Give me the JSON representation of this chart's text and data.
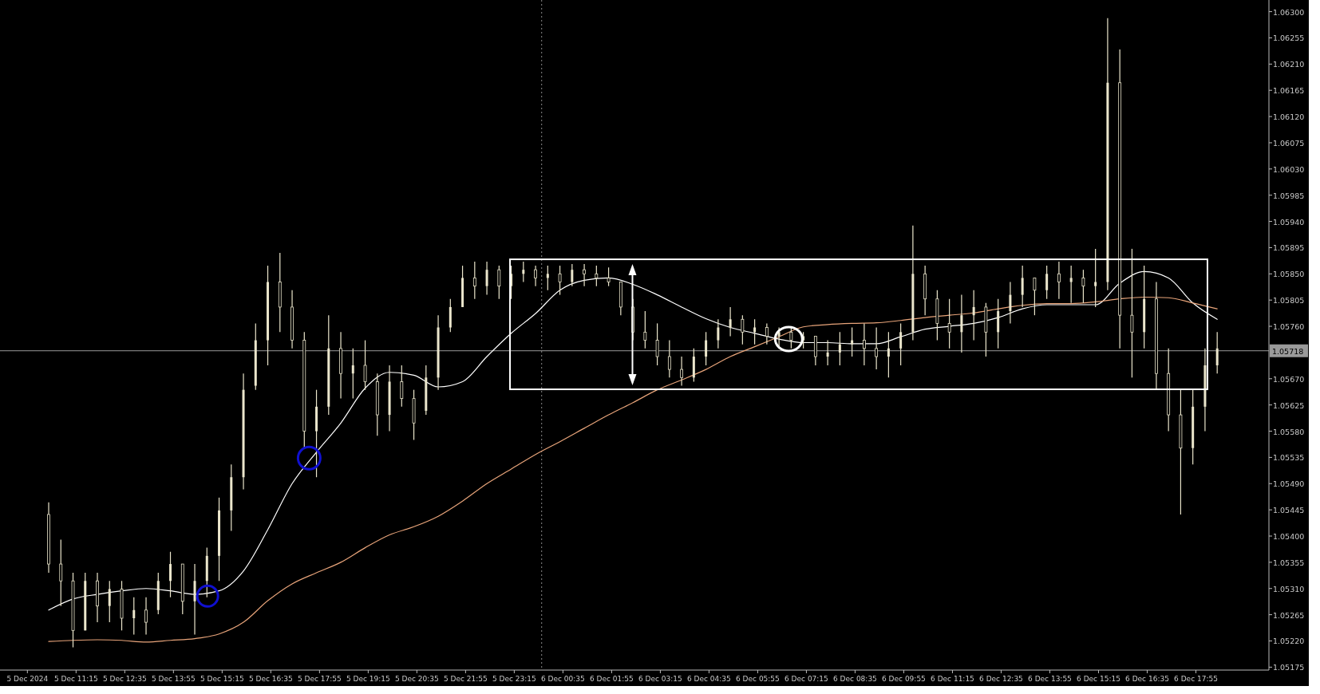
{
  "chart_data": {
    "type": "candlestick",
    "color": "#ebe6cc",
    "x": [
      "2024-12-05T10:30",
      "2024-12-05T10:50",
      "2024-12-05T11:10",
      "2024-12-05T11:30",
      "2024-12-05T11:50",
      "2024-12-05T12:10",
      "2024-12-05T12:30",
      "2024-12-05T12:50",
      "2024-12-05T13:10",
      "2024-12-05T13:30",
      "2024-12-05T13:50",
      "2024-12-05T14:10",
      "2024-12-05T14:30",
      "2024-12-05T14:50",
      "2024-12-05T15:10",
      "2024-12-05T15:30",
      "2024-12-05T15:50",
      "2024-12-05T16:10",
      "2024-12-05T16:30",
      "2024-12-05T16:50",
      "2024-12-05T17:10",
      "2024-12-05T17:30",
      "2024-12-05T17:50",
      "2024-12-05T18:10",
      "2024-12-05T18:30",
      "2024-12-05T18:50",
      "2024-12-05T19:10",
      "2024-12-05T19:30",
      "2024-12-05T19:50",
      "2024-12-05T20:10",
      "2024-12-05T20:30",
      "2024-12-05T20:50",
      "2024-12-05T21:10",
      "2024-12-05T21:30",
      "2024-12-05T21:50",
      "2024-12-05T22:10",
      "2024-12-05T22:30",
      "2024-12-05T22:50",
      "2024-12-05T23:10",
      "2024-12-05T23:30",
      "2024-12-05T23:50",
      "2024-12-06T00:10",
      "2024-12-06T00:30",
      "2024-12-06T00:50",
      "2024-12-06T01:10",
      "2024-12-06T01:30",
      "2024-12-06T01:50",
      "2024-12-06T02:10",
      "2024-12-06T02:30",
      "2024-12-06T02:50",
      "2024-12-06T03:10",
      "2024-12-06T03:30",
      "2024-12-06T03:50",
      "2024-12-06T04:10",
      "2024-12-06T04:30",
      "2024-12-06T04:50",
      "2024-12-06T05:10",
      "2024-12-06T05:30",
      "2024-12-06T05:50",
      "2024-12-06T06:10",
      "2024-12-06T06:30",
      "2024-12-06T06:50",
      "2024-12-06T07:10",
      "2024-12-06T07:30",
      "2024-12-06T07:50",
      "2024-12-06T08:10",
      "2024-12-06T08:30",
      "2024-12-06T08:50",
      "2024-12-06T09:10",
      "2024-12-06T09:30",
      "2024-12-06T09:50",
      "2024-12-06T10:10",
      "2024-12-06T10:30",
      "2024-12-06T10:50",
      "2024-12-06T11:10",
      "2024-12-06T11:30",
      "2024-12-06T11:50",
      "2024-12-06T12:10",
      "2024-12-06T12:30",
      "2024-12-06T12:50",
      "2024-12-06T13:10",
      "2024-12-06T13:30",
      "2024-12-06T13:50",
      "2024-12-06T14:10",
      "2024-12-06T14:30",
      "2024-12-06T14:50",
      "2024-12-06T15:10",
      "2024-12-06T15:30",
      "2024-12-06T15:50",
      "2024-12-06T16:10",
      "2024-12-06T16:30",
      "2024-12-06T16:50",
      "2024-12-06T17:10",
      "2024-12-06T17:30",
      "2024-12-06T17:50",
      "2024-12-06T18:10",
      "2024-12-06T18:30"
    ],
    "ohlc": [
      [
        1.05437,
        1.05458,
        1.05337,
        1.05352
      ],
      [
        1.05352,
        1.05394,
        1.0528,
        1.05323
      ],
      [
        1.05323,
        1.05337,
        1.05209,
        1.05238
      ],
      [
        1.05238,
        1.05337,
        1.05238,
        1.05323
      ],
      [
        1.05323,
        1.05337,
        1.05252,
        1.0528
      ],
      [
        1.0528,
        1.05323,
        1.05252,
        1.05309
      ],
      [
        1.05309,
        1.05323,
        1.05238,
        1.05259
      ],
      [
        1.05259,
        1.05295,
        1.05231,
        1.05273
      ],
      [
        1.05273,
        1.05295,
        1.05231,
        1.05252
      ],
      [
        1.05273,
        1.05337,
        1.05266,
        1.05323
      ],
      [
        1.05323,
        1.05373,
        1.05295,
        1.05352
      ],
      [
        1.05352,
        1.05352,
        1.05266,
        1.05288
      ],
      [
        1.05288,
        1.05352,
        1.05231,
        1.05323
      ],
      [
        1.05323,
        1.0538,
        1.05295,
        1.05366
      ],
      [
        1.05366,
        1.05466,
        1.05323,
        1.05444
      ],
      [
        1.05444,
        1.05523,
        1.05409,
        1.05501
      ],
      [
        1.05501,
        1.05679,
        1.0548,
        1.05651
      ],
      [
        1.05658,
        1.05765,
        1.05651,
        1.05736
      ],
      [
        1.05736,
        1.05864,
        1.05693,
        1.05836
      ],
      [
        1.05836,
        1.05886,
        1.0575,
        1.05793
      ],
      [
        1.05793,
        1.05822,
        1.05722,
        1.05736
      ],
      [
        1.05736,
        1.0575,
        1.05551,
        1.0558
      ],
      [
        1.0558,
        1.05651,
        1.05501,
        1.05622
      ],
      [
        1.05622,
        1.05779,
        1.05608,
        1.05722
      ],
      [
        1.05722,
        1.0575,
        1.05636,
        1.05679
      ],
      [
        1.05679,
        1.05722,
        1.05636,
        1.05693
      ],
      [
        1.05693,
        1.05736,
        1.05651,
        1.05665
      ],
      [
        1.05665,
        1.05679,
        1.05572,
        1.05608
      ],
      [
        1.05608,
        1.05693,
        1.0558,
        1.05665
      ],
      [
        1.05665,
        1.05693,
        1.05622,
        1.05636
      ],
      [
        1.05636,
        1.05651,
        1.05565,
        1.05594
      ],
      [
        1.05615,
        1.05693,
        1.05608,
        1.05672
      ],
      [
        1.05672,
        1.05779,
        1.05651,
        1.05758
      ],
      [
        1.05758,
        1.05807,
        1.0575,
        1.05793
      ],
      [
        1.05793,
        1.05864,
        1.05793,
        1.05843
      ],
      [
        1.05843,
        1.05871,
        1.05807,
        1.05829
      ],
      [
        1.05829,
        1.05871,
        1.05814,
        1.05857
      ],
      [
        1.05857,
        1.05864,
        1.05807,
        1.05829
      ],
      [
        1.05829,
        1.05864,
        1.05807,
        1.0585
      ],
      [
        1.0585,
        1.05871,
        1.05836,
        1.05857
      ],
      [
        1.05857,
        1.05864,
        1.05829,
        1.05843
      ],
      [
        1.05843,
        1.05864,
        1.05822,
        1.0585
      ],
      [
        1.0585,
        1.05864,
        1.05814,
        1.05836
      ],
      [
        1.05836,
        1.05867,
        1.05829,
        1.05857
      ],
      [
        1.05857,
        1.05867,
        1.05829,
        1.0585
      ],
      [
        1.0585,
        1.05864,
        1.05829,
        1.05843
      ],
      [
        1.05843,
        1.05861,
        1.05829,
        1.05836
      ],
      [
        1.05836,
        1.05836,
        1.05779,
        1.05793
      ],
      [
        1.05793,
        1.05807,
        1.05736,
        1.0575
      ],
      [
        1.0575,
        1.05786,
        1.05722,
        1.05736
      ],
      [
        1.05736,
        1.05765,
        1.05693,
        1.05708
      ],
      [
        1.05708,
        1.05736,
        1.05672,
        1.05686
      ],
      [
        1.05686,
        1.05708,
        1.05658,
        1.05672
      ],
      [
        1.05672,
        1.05722,
        1.05665,
        1.05708
      ],
      [
        1.05708,
        1.0575,
        1.05693,
        1.05736
      ],
      [
        1.05736,
        1.05772,
        1.05722,
        1.05758
      ],
      [
        1.05758,
        1.05793,
        1.05743,
        1.05772
      ],
      [
        1.05772,
        1.05779,
        1.05729,
        1.0575
      ],
      [
        1.0575,
        1.05772,
        1.05729,
        1.05758
      ],
      [
        1.05758,
        1.05765,
        1.05729,
        1.05743
      ],
      [
        1.05743,
        1.05758,
        1.05722,
        1.0575
      ],
      [
        1.0575,
        1.05758,
        1.05722,
        1.05736
      ],
      [
        1.05736,
        1.0575,
        1.05722,
        1.05743
      ],
      [
        1.05743,
        1.05743,
        1.05693,
        1.05708
      ],
      [
        1.05708,
        1.05736,
        1.05693,
        1.05715
      ],
      [
        1.05715,
        1.0575,
        1.05693,
        1.05729
      ],
      [
        1.05729,
        1.05758,
        1.05708,
        1.05736
      ],
      [
        1.05736,
        1.05765,
        1.05693,
        1.05722
      ],
      [
        1.05722,
        1.05758,
        1.05686,
        1.05708
      ],
      [
        1.05708,
        1.0575,
        1.05672,
        1.05722
      ],
      [
        1.05722,
        1.05765,
        1.05693,
        1.0575
      ],
      [
        1.0575,
        1.05933,
        1.05736,
        1.0585
      ],
      [
        1.0585,
        1.05864,
        1.05779,
        1.05807
      ],
      [
        1.05807,
        1.05822,
        1.05736,
        1.05765
      ],
      [
        1.05765,
        1.05807,
        1.05722,
        1.0575
      ],
      [
        1.0575,
        1.05814,
        1.05715,
        1.05779
      ],
      [
        1.05779,
        1.05822,
        1.05736,
        1.05793
      ],
      [
        1.05793,
        1.058,
        1.05708,
        1.0575
      ],
      [
        1.0575,
        1.05807,
        1.05722,
        1.05786
      ],
      [
        1.05786,
        1.05836,
        1.05765,
        1.05814
      ],
      [
        1.05814,
        1.05864,
        1.05793,
        1.05843
      ],
      [
        1.05843,
        1.05843,
        1.05779,
        1.05822
      ],
      [
        1.05822,
        1.05864,
        1.05807,
        1.0585
      ],
      [
        1.0585,
        1.05871,
        1.05807,
        1.05836
      ],
      [
        1.05836,
        1.05864,
        1.058,
        1.05843
      ],
      [
        1.05843,
        1.05857,
        1.058,
        1.05829
      ],
      [
        1.05829,
        1.05893,
        1.05793,
        1.05836
      ],
      [
        1.05836,
        1.06289,
        1.05822,
        1.06178
      ],
      [
        1.06178,
        1.06235,
        1.05722,
        1.05779
      ],
      [
        1.05779,
        1.05893,
        1.05672,
        1.0575
      ],
      [
        1.0575,
        1.05864,
        1.05722,
        1.05807
      ],
      [
        1.05807,
        1.05836,
        1.05651,
        1.05679
      ],
      [
        1.05679,
        1.05722,
        1.0558,
        1.05608
      ],
      [
        1.05608,
        1.05651,
        1.05437,
        1.05551
      ],
      [
        1.05551,
        1.05651,
        1.05523,
        1.05622
      ],
      [
        1.05622,
        1.05722,
        1.0558,
        1.05693
      ],
      [
        1.05693,
        1.0575,
        1.05679,
        1.05722
      ]
    ],
    "series": [
      {
        "type": "line",
        "color": "#ffffff",
        "x": [
          "2024-12-05T10:30",
          "2024-12-05T11:10",
          "2024-12-05T11:50",
          "2024-12-05T12:30",
          "2024-12-05T13:10",
          "2024-12-05T13:50",
          "2024-12-05T14:30",
          "2024-12-05T15:10",
          "2024-12-05T15:50",
          "2024-12-05T16:30",
          "2024-12-05T17:10",
          "2024-12-05T17:50",
          "2024-12-05T18:30",
          "2024-12-05T19:10",
          "2024-12-05T19:50",
          "2024-12-05T20:30",
          "2024-12-05T21:10",
          "2024-12-05T21:50",
          "2024-12-05T22:30",
          "2024-12-05T23:10",
          "2024-12-05T23:50",
          "2024-12-06T00:30",
          "2024-12-06T01:10",
          "2024-12-06T01:50",
          "2024-12-06T02:30",
          "2024-12-06T03:10",
          "2024-12-06T03:50",
          "2024-12-06T04:30",
          "2024-12-06T05:10",
          "2024-12-06T05:50",
          "2024-12-06T06:30",
          "2024-12-06T07:10",
          "2024-12-06T07:50",
          "2024-12-06T08:30",
          "2024-12-06T09:10",
          "2024-12-06T09:50",
          "2024-12-06T10:30",
          "2024-12-06T11:10",
          "2024-12-06T11:50",
          "2024-12-06T12:30",
          "2024-12-06T13:10",
          "2024-12-06T13:50",
          "2024-12-06T14:30",
          "2024-12-06T15:10",
          "2024-12-06T15:50",
          "2024-12-06T16:30",
          "2024-12-06T17:10",
          "2024-12-06T17:50",
          "2024-12-06T18:30"
        ],
        "values": [
          1.05273,
          1.05292,
          1.053,
          1.05306,
          1.0531,
          1.05306,
          1.053,
          1.05306,
          1.0534,
          1.05411,
          1.0549,
          1.05544,
          1.05594,
          1.05654,
          1.05681,
          1.05676,
          1.05656,
          1.05665,
          1.05708,
          1.05748,
          1.05782,
          1.05822,
          1.05839,
          1.05843,
          1.05832,
          1.05814,
          1.05793,
          1.05773,
          1.05758,
          1.05748,
          1.05738,
          1.05732,
          1.05732,
          1.0573,
          1.0573,
          1.05742,
          1.05755,
          1.0576,
          1.05765,
          1.05775,
          1.0579,
          1.05797,
          1.05797,
          1.05797,
          1.05834,
          1.05854,
          1.05843,
          1.058,
          1.05772
        ]
      },
      {
        "type": "line",
        "color": "#e8a47a",
        "x": [
          "2024-12-05T10:30",
          "2024-12-05T11:10",
          "2024-12-05T11:50",
          "2024-12-05T12:30",
          "2024-12-05T13:10",
          "2024-12-05T13:50",
          "2024-12-05T14:30",
          "2024-12-05T15:10",
          "2024-12-05T15:50",
          "2024-12-05T16:30",
          "2024-12-05T17:10",
          "2024-12-05T17:50",
          "2024-12-05T18:30",
          "2024-12-05T19:10",
          "2024-12-05T19:50",
          "2024-12-05T20:30",
          "2024-12-05T21:10",
          "2024-12-05T21:50",
          "2024-12-05T22:30",
          "2024-12-05T23:10",
          "2024-12-05T23:50",
          "2024-12-06T00:30",
          "2024-12-06T01:10",
          "2024-12-06T01:50",
          "2024-12-06T02:30",
          "2024-12-06T03:10",
          "2024-12-06T03:50",
          "2024-12-06T04:30",
          "2024-12-06T05:10",
          "2024-12-06T05:50",
          "2024-12-06T06:30",
          "2024-12-06T07:10",
          "2024-12-06T07:50",
          "2024-12-06T08:30",
          "2024-12-06T09:10",
          "2024-12-06T09:50",
          "2024-12-06T10:30",
          "2024-12-06T11:10",
          "2024-12-06T11:50",
          "2024-12-06T12:30",
          "2024-12-06T13:10",
          "2024-12-06T13:50",
          "2024-12-06T14:30",
          "2024-12-06T15:10",
          "2024-12-06T15:50",
          "2024-12-06T16:30",
          "2024-12-06T17:10",
          "2024-12-06T17:50",
          "2024-12-06T18:30"
        ],
        "values": [
          1.05219,
          1.05221,
          1.05222,
          1.05221,
          1.05218,
          1.05221,
          1.05224,
          1.05232,
          1.05252,
          1.05289,
          1.05318,
          1.05337,
          1.05355,
          1.0538,
          1.05402,
          1.05416,
          1.05434,
          1.0546,
          1.0549,
          1.05515,
          1.0554,
          1.05562,
          1.05585,
          1.05608,
          1.05629,
          1.05651,
          1.05668,
          1.05686,
          1.05708,
          1.05725,
          1.05742,
          1.05759,
          1.05763,
          1.05765,
          1.05766,
          1.0577,
          1.05775,
          1.05779,
          1.05783,
          1.0579,
          1.05796,
          1.05799,
          1.05799,
          1.05802,
          1.05807,
          1.0581,
          1.05809,
          1.058,
          1.0579
        ]
      }
    ],
    "xlim": [
      "2024-12-05T09:10",
      "2024-12-06T19:55"
    ],
    "xticks": [
      {
        "value": "2024-12-05T09:55",
        "label": "5 Dec 2024"
      },
      {
        "value": "2024-12-05T11:15",
        "label": "5 Dec 11:15"
      },
      {
        "value": "2024-12-05T12:35",
        "label": "5 Dec 12:35"
      },
      {
        "value": "2024-12-05T13:55",
        "label": "5 Dec 13:55"
      },
      {
        "value": "2024-12-05T15:15",
        "label": "5 Dec 15:15"
      },
      {
        "value": "2024-12-05T16:35",
        "label": "5 Dec 16:35"
      },
      {
        "value": "2024-12-05T17:55",
        "label": "5 Dec 17:55"
      },
      {
        "value": "2024-12-05T19:15",
        "label": "5 Dec 19:15"
      },
      {
        "value": "2024-12-05T20:35",
        "label": "5 Dec 20:35"
      },
      {
        "value": "2024-12-05T21:55",
        "label": "5 Dec 21:55"
      },
      {
        "value": "2024-12-05T23:15",
        "label": "5 Dec 23:15"
      },
      {
        "value": "2024-12-06T00:35",
        "label": "6 Dec 00:35"
      },
      {
        "value": "2024-12-06T01:55",
        "label": "6 Dec 01:55"
      },
      {
        "value": "2024-12-06T03:15",
        "label": "6 Dec 03:15"
      },
      {
        "value": "2024-12-06T04:35",
        "label": "6 Dec 04:35"
      },
      {
        "value": "2024-12-06T05:55",
        "label": "6 Dec 05:55"
      },
      {
        "value": "2024-12-06T07:15",
        "label": "6 Dec 07:15"
      },
      {
        "value": "2024-12-06T08:35",
        "label": "6 Dec 08:35"
      },
      {
        "value": "2024-12-06T09:55",
        "label": "6 Dec 09:55"
      },
      {
        "value": "2024-12-06T11:15",
        "label": "6 Dec 11:15"
      },
      {
        "value": "2024-12-06T12:35",
        "label": "6 Dec 12:35"
      },
      {
        "value": "2024-12-06T13:55",
        "label": "6 Dec 13:55"
      },
      {
        "value": "2024-12-06T15:15",
        "label": "6 Dec 15:15"
      },
      {
        "value": "2024-12-06T16:35",
        "label": "6 Dec 16:35"
      },
      {
        "value": "2024-12-06T17:55",
        "label": "6 Dec 17:55"
      }
    ],
    "ylim": [
      1.0517,
      1.0632
    ],
    "yticks": [
      1.05175,
      {
        "value": 1.0522,
        "label": "1.05220"
      },
      1.05265,
      {
        "value": 1.0531,
        "label": "1.05310"
      },
      1.05355,
      {
        "value": 1.054,
        "label": "1.05400"
      },
      1.05445,
      {
        "value": 1.0549,
        "label": "1.05490"
      },
      1.05535,
      {
        "value": 1.0558,
        "label": "1.05580"
      },
      1.05625,
      {
        "value": 1.0567,
        "label": "1.05670"
      },
      {
        "value": 1.0576,
        "label": "1.05760"
      },
      1.05805,
      {
        "value": 1.0585,
        "label": "1.05850"
      },
      1.05895,
      {
        "value": 1.0594,
        "label": "1.05940"
      },
      1.05985,
      {
        "value": 1.0603,
        "label": "1.06030"
      },
      1.06075,
      {
        "value": 1.0612,
        "label": "1.06120"
      },
      1.06165,
      {
        "value": 1.0621,
        "label": "1.06210"
      },
      1.06255,
      {
        "value": 1.063,
        "label": "1.06300"
      }
    ],
    "ref_lines": [
      {
        "axis": "y",
        "value": 1.05718,
        "label": "1.05718",
        "color": "#9a9a9a",
        "line_style": "solid"
      },
      {
        "axis": "x",
        "value": "2024-12-06T00:00",
        "label": null,
        "color": "#8a8a8a",
        "line_style": "dotted"
      }
    ],
    "grid": false
  }
}
